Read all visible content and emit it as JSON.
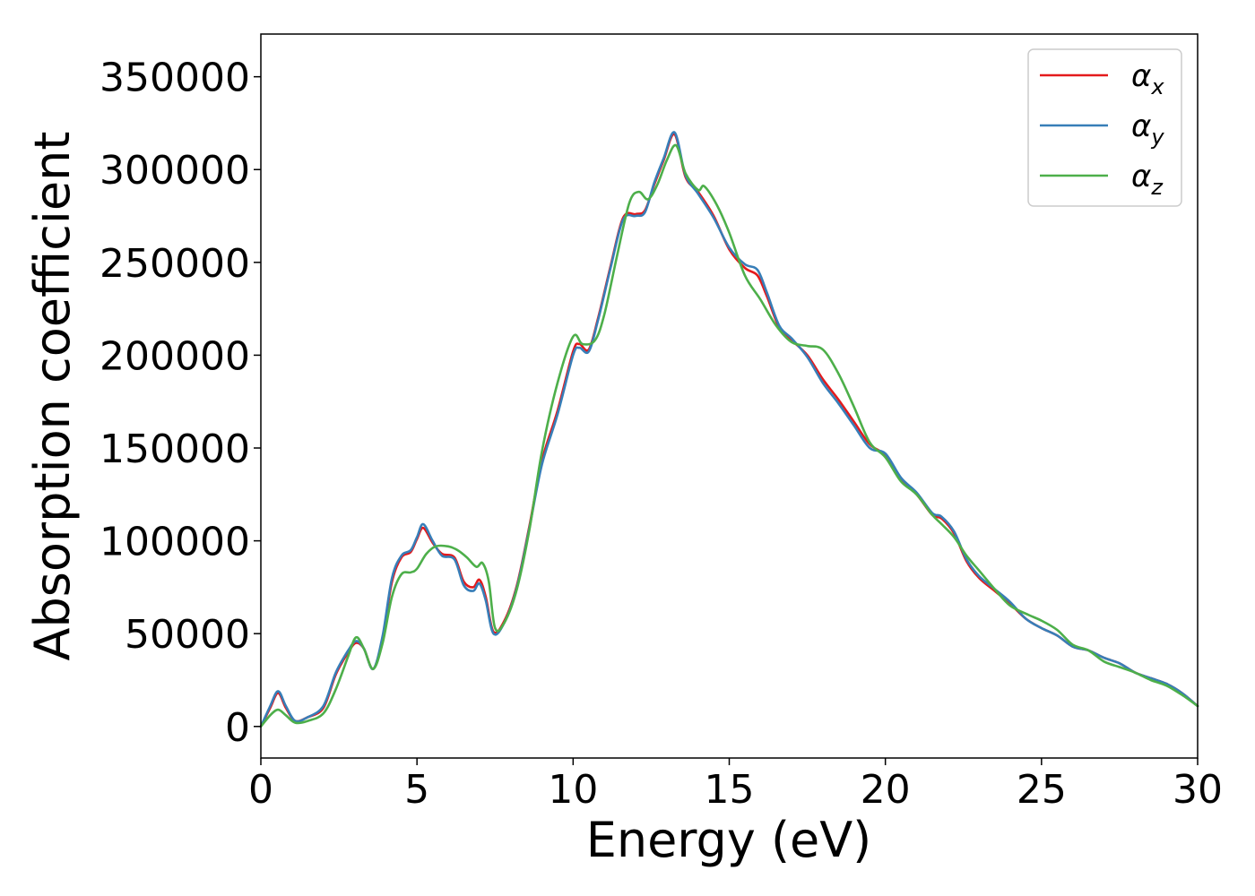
{
  "chart_data": {
    "type": "line",
    "title": "",
    "xlabel": "Energy (eV)",
    "ylabel": "Absorption coefficient",
    "xlim": [
      0,
      30
    ],
    "ylim": [
      -17000,
      373000
    ],
    "xticks": [
      0,
      5,
      10,
      15,
      20,
      25,
      30
    ],
    "yticks": [
      0,
      50000,
      100000,
      150000,
      200000,
      250000,
      300000,
      350000
    ],
    "grid": false,
    "legend_position": "top-right",
    "series": [
      {
        "name": "α_x",
        "symbol": "α",
        "subscript": "x",
        "color": "#e41a1c",
        "x": [
          0,
          0.3,
          0.55,
          0.8,
          1.1,
          1.5,
          2.0,
          2.4,
          2.8,
          3.05,
          3.3,
          3.6,
          3.9,
          4.2,
          4.5,
          4.8,
          5.0,
          5.2,
          5.5,
          5.8,
          6.2,
          6.5,
          6.8,
          7.0,
          7.2,
          7.45,
          7.8,
          8.2,
          8.6,
          9.0,
          9.5,
          10.0,
          10.2,
          10.5,
          10.8,
          11.2,
          11.6,
          12.0,
          12.3,
          12.6,
          12.9,
          13.25,
          13.6,
          14.0,
          14.5,
          15.0,
          15.5,
          15.9,
          16.2,
          16.6,
          17.0,
          17.5,
          18.0,
          18.5,
          19.0,
          19.5,
          20.0,
          20.5,
          21.0,
          21.5,
          21.8,
          22.2,
          22.6,
          23.0,
          23.5,
          24.0,
          24.5,
          25.0,
          25.5,
          26.0,
          26.5,
          27.0,
          27.5,
          28.0,
          28.5,
          29.0,
          29.5,
          30.0
        ],
        "values": [
          0,
          10000,
          18000,
          10000,
          3000,
          5000,
          10000,
          28000,
          40000,
          45000,
          42000,
          31000,
          48000,
          78000,
          91000,
          94000,
          101000,
          107000,
          99000,
          93000,
          91000,
          78000,
          75000,
          79000,
          70000,
          51000,
          57000,
          76000,
          108000,
          143000,
          170000,
          202000,
          206000,
          203000,
          220000,
          248000,
          274000,
          276000,
          278000,
          292000,
          305000,
          319000,
          296000,
          288000,
          275000,
          257000,
          247000,
          243000,
          232000,
          215000,
          208000,
          200000,
          187000,
          176000,
          164000,
          152000,
          146000,
          133000,
          125000,
          114000,
          112000,
          104000,
          89000,
          80000,
          73000,
          66000,
          58000,
          53000,
          49000,
          43000,
          41000,
          37000,
          34000,
          29000,
          26000,
          23000,
          18000,
          11000
        ]
      },
      {
        "name": "α_y",
        "symbol": "α",
        "subscript": "y",
        "color": "#377eb8",
        "x": [
          0,
          0.3,
          0.55,
          0.8,
          1.1,
          1.5,
          2.0,
          2.4,
          2.8,
          3.05,
          3.3,
          3.6,
          3.9,
          4.2,
          4.5,
          4.8,
          5.0,
          5.2,
          5.5,
          5.8,
          6.2,
          6.5,
          6.8,
          7.0,
          7.2,
          7.45,
          7.8,
          8.2,
          8.6,
          9.0,
          9.5,
          10.0,
          10.2,
          10.5,
          10.8,
          11.2,
          11.6,
          12.0,
          12.3,
          12.6,
          12.9,
          13.25,
          13.6,
          14.0,
          14.5,
          15.0,
          15.5,
          15.9,
          16.2,
          16.6,
          17.0,
          17.5,
          18.0,
          18.5,
          19.0,
          19.5,
          20.0,
          20.5,
          21.0,
          21.5,
          21.8,
          22.2,
          22.6,
          23.0,
          23.5,
          24.0,
          24.5,
          25.0,
          25.5,
          26.0,
          26.5,
          27.0,
          27.5,
          28.0,
          28.5,
          29.0,
          29.5,
          30.0
        ],
        "values": [
          0,
          11000,
          19000,
          11000,
          3000,
          5000,
          11000,
          29000,
          41000,
          46000,
          42000,
          31000,
          49000,
          80000,
          92000,
          95000,
          102000,
          109000,
          100000,
          92000,
          90000,
          76000,
          73000,
          77000,
          68000,
          50000,
          56000,
          75000,
          107000,
          141000,
          168000,
          200000,
          204000,
          202000,
          219000,
          247000,
          273000,
          275000,
          277000,
          293000,
          306000,
          320000,
          297000,
          287000,
          274000,
          258000,
          249000,
          246000,
          234000,
          216000,
          209000,
          199000,
          185000,
          174000,
          162000,
          150000,
          147000,
          134000,
          126000,
          115000,
          113000,
          105000,
          90000,
          81000,
          74000,
          67000,
          58000,
          53000,
          49000,
          43000,
          41000,
          37000,
          34000,
          29000,
          26000,
          23000,
          18000,
          11000
        ]
      },
      {
        "name": "α_z",
        "symbol": "α",
        "subscript": "z",
        "color": "#4daf4a",
        "x": [
          0,
          0.3,
          0.55,
          0.8,
          1.1,
          1.5,
          2.0,
          2.4,
          2.8,
          3.05,
          3.3,
          3.6,
          3.9,
          4.2,
          4.5,
          4.8,
          5.0,
          5.3,
          5.6,
          6.0,
          6.3,
          6.6,
          6.9,
          7.1,
          7.3,
          7.5,
          7.8,
          8.2,
          8.6,
          9.0,
          9.5,
          10.0,
          10.3,
          10.7,
          11.0,
          11.4,
          11.8,
          12.1,
          12.4,
          12.7,
          13.0,
          13.3,
          13.6,
          14.0,
          14.2,
          14.6,
          15.0,
          15.5,
          16.0,
          16.5,
          17.0,
          17.5,
          18.0,
          18.5,
          19.0,
          19.5,
          20.0,
          20.5,
          21.0,
          21.5,
          21.8,
          22.2,
          22.6,
          23.0,
          23.5,
          24.0,
          24.6,
          25.0,
          25.5,
          26.0,
          26.5,
          27.0,
          27.5,
          28.0,
          28.5,
          29.0,
          29.5,
          30.0
        ],
        "values": [
          0,
          6000,
          9000,
          6000,
          2000,
          3000,
          7000,
          20000,
          38000,
          48000,
          42000,
          31000,
          45000,
          70000,
          82000,
          83000,
          85000,
          93000,
          97000,
          97000,
          95000,
          91000,
          86000,
          88000,
          78000,
          53000,
          56000,
          74000,
          106000,
          148000,
          185000,
          210000,
          206000,
          208000,
          222000,
          253000,
          282000,
          288000,
          284000,
          292000,
          305000,
          313000,
          298000,
          289000,
          291000,
          281000,
          266000,
          243000,
          230000,
          216000,
          207000,
          205000,
          203000,
          190000,
          172000,
          153000,
          145000,
          132000,
          125000,
          114000,
          109000,
          102000,
          92000,
          84000,
          74000,
          65000,
          60000,
          57000,
          52000,
          44000,
          41000,
          35000,
          32000,
          29000,
          25000,
          22000,
          17000,
          11000
        ]
      }
    ]
  }
}
